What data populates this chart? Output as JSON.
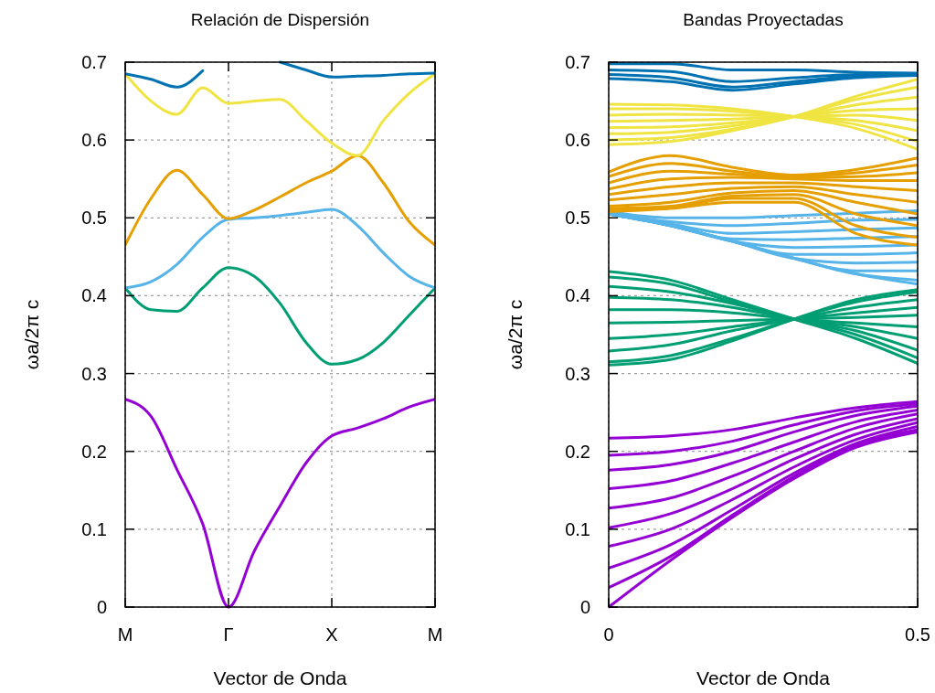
{
  "chart_data": [
    {
      "type": "line",
      "title": "Relación de Dispersión",
      "xlabel": "Vector de Onda",
      "ylabel": "ωa/2π c",
      "categories": [
        "M",
        null,
        null,
        null,
        "Γ",
        null,
        null,
        null,
        "X",
        null,
        null,
        null,
        "M"
      ],
      "ylim": [
        0,
        0.7
      ],
      "yticks": [
        0,
        0.1,
        0.2,
        0.3,
        0.4,
        0.5,
        0.6,
        0.7
      ],
      "grid": true,
      "marker": "none",
      "line_style": "solid",
      "series": [
        {
          "color": "#9400d3",
          "values": [
            0.267,
            0.245,
            0.177,
            0.107,
            0,
            0.072,
            0.13,
            0.185,
            0.22,
            0.23,
            0.242,
            0.257,
            0.267
          ]
        },
        {
          "color": "#009e73",
          "values": [
            0.41,
            0.382,
            0.38,
            0.41,
            0.436,
            0.425,
            0.39,
            0.34,
            0.312,
            0.318,
            0.34,
            0.375,
            0.41
          ]
        },
        {
          "color": "#56b4e9",
          "values": [
            0.41,
            0.418,
            0.44,
            0.475,
            0.498,
            0.5,
            0.503,
            0.507,
            0.511,
            0.49,
            0.455,
            0.425,
            0.41
          ]
        },
        {
          "color": "#e69f00",
          "values": [
            0.465,
            0.525,
            0.561,
            0.53,
            0.499,
            0.51,
            0.527,
            0.545,
            0.56,
            0.58,
            0.545,
            0.495,
            0.465
          ]
        },
        {
          "color": "#f0e442",
          "values": [
            0.685,
            0.65,
            0.633,
            0.667,
            0.647,
            0.65,
            0.652,
            0.625,
            0.596,
            0.58,
            0.625,
            0.66,
            0.685
          ]
        },
        {
          "color": "#0072b2",
          "values": [
            0.685,
            0.678,
            0.668,
            0.689,
            null,
            null,
            0.7,
            0.69,
            0.681,
            0.682,
            0.683,
            0.685,
            0.686
          ]
        }
      ]
    },
    {
      "type": "line",
      "title": "Bandas Proyectadas",
      "xlabel": "Vector de Onda",
      "ylabel": "ωa/2π c",
      "x": [
        0,
        0.1,
        0.2,
        0.3,
        0.4,
        0.5
      ],
      "xlim": [
        0,
        0.5
      ],
      "ylim": [
        0,
        0.7
      ],
      "xticks": [
        0,
        0.5
      ],
      "yticks": [
        0,
        0.1,
        0.2,
        0.3,
        0.4,
        0.5,
        0.6,
        0.7
      ],
      "grid": true,
      "marker": "none",
      "line_style": "solid",
      "series": [
        {
          "color": "#9400d3",
          "values": [
            0,
            0.06,
            0.115,
            0.165,
            0.205,
            0.225
          ]
        },
        {
          "color": "#9400d3",
          "values": [
            0.025,
            0.065,
            0.118,
            0.168,
            0.208,
            0.228
          ]
        },
        {
          "color": "#9400d3",
          "values": [
            0.05,
            0.08,
            0.125,
            0.172,
            0.21,
            0.232
          ]
        },
        {
          "color": "#9400d3",
          "values": [
            0.078,
            0.1,
            0.138,
            0.18,
            0.215,
            0.237
          ]
        },
        {
          "color": "#9400d3",
          "values": [
            0.102,
            0.12,
            0.152,
            0.19,
            0.222,
            0.242
          ]
        },
        {
          "color": "#9400d3",
          "values": [
            0.127,
            0.14,
            0.168,
            0.2,
            0.23,
            0.248
          ]
        },
        {
          "color": "#9400d3",
          "values": [
            0.152,
            0.162,
            0.185,
            0.212,
            0.238,
            0.253
          ]
        },
        {
          "color": "#9400d3",
          "values": [
            0.176,
            0.183,
            0.2,
            0.225,
            0.246,
            0.258
          ]
        },
        {
          "color": "#9400d3",
          "values": [
            0.195,
            0.2,
            0.213,
            0.234,
            0.252,
            0.261
          ]
        },
        {
          "color": "#9400d3",
          "values": [
            0.217,
            0.22,
            0.228,
            0.243,
            0.256,
            0.264
          ]
        },
        {
          "color": "#009e73",
          "values": [
            0.431,
            0.42,
            0.395,
            0.37,
            0.345,
            0.313
          ]
        },
        {
          "color": "#009e73",
          "values": [
            0.424,
            0.415,
            0.392,
            0.37,
            0.35,
            0.32
          ]
        },
        {
          "color": "#009e73",
          "values": [
            0.412,
            0.405,
            0.39,
            0.37,
            0.355,
            0.33
          ]
        },
        {
          "color": "#009e73",
          "values": [
            0.398,
            0.395,
            0.385,
            0.37,
            0.36,
            0.345
          ]
        },
        {
          "color": "#009e73",
          "values": [
            0.382,
            0.382,
            0.378,
            0.37,
            0.365,
            0.36
          ]
        },
        {
          "color": "#009e73",
          "values": [
            0.365,
            0.366,
            0.368,
            0.37,
            0.372,
            0.375
          ]
        },
        {
          "color": "#009e73",
          "values": [
            0.345,
            0.35,
            0.36,
            0.37,
            0.378,
            0.385
          ]
        },
        {
          "color": "#009e73",
          "values": [
            0.329,
            0.337,
            0.355,
            0.37,
            0.385,
            0.395
          ]
        },
        {
          "color": "#009e73",
          "values": [
            0.315,
            0.323,
            0.345,
            0.37,
            0.392,
            0.405
          ]
        },
        {
          "color": "#009e73",
          "values": [
            0.311,
            0.318,
            0.342,
            0.37,
            0.395,
            0.408
          ]
        },
        {
          "color": "#56b4e9",
          "values": [
            0.508,
            0.5,
            0.5,
            0.503,
            0.506,
            0.509
          ]
        },
        {
          "color": "#56b4e9",
          "values": [
            0.505,
            0.495,
            0.49,
            0.493,
            0.497,
            0.498
          ]
        },
        {
          "color": "#56b4e9",
          "values": [
            0.505,
            0.492,
            0.48,
            0.482,
            0.485,
            0.487
          ]
        },
        {
          "color": "#56b4e9",
          "values": [
            0.505,
            0.49,
            0.473,
            0.472,
            0.474,
            0.476
          ]
        },
        {
          "color": "#56b4e9",
          "values": [
            0.505,
            0.49,
            0.47,
            0.462,
            0.463,
            0.465
          ]
        },
        {
          "color": "#56b4e9",
          "values": [
            0.505,
            0.49,
            0.47,
            0.453,
            0.453,
            0.455
          ]
        },
        {
          "color": "#56b4e9",
          "values": [
            0.505,
            0.49,
            0.47,
            0.448,
            0.442,
            0.443
          ]
        },
        {
          "color": "#56b4e9",
          "values": [
            0.505,
            0.49,
            0.47,
            0.448,
            0.432,
            0.432
          ]
        },
        {
          "color": "#56b4e9",
          "values": [
            0.505,
            0.49,
            0.47,
            0.448,
            0.428,
            0.42
          ]
        },
        {
          "color": "#56b4e9",
          "values": [
            0.505,
            0.49,
            0.47,
            0.448,
            0.428,
            0.415
          ]
        },
        {
          "color": "#e69f00",
          "values": [
            0.559,
            0.58,
            0.565,
            0.555,
            0.562,
            0.577
          ]
        },
        {
          "color": "#e69f00",
          "values": [
            0.553,
            0.57,
            0.56,
            0.553,
            0.558,
            0.568
          ]
        },
        {
          "color": "#e69f00",
          "values": [
            0.545,
            0.56,
            0.556,
            0.552,
            0.553,
            0.558
          ]
        },
        {
          "color": "#e69f00",
          "values": [
            0.537,
            0.55,
            0.552,
            0.55,
            0.548,
            0.548
          ]
        },
        {
          "color": "#e69f00",
          "values": [
            0.53,
            0.54,
            0.545,
            0.545,
            0.54,
            0.535
          ]
        },
        {
          "color": "#e69f00",
          "values": [
            0.523,
            0.53,
            0.538,
            0.54,
            0.53,
            0.52
          ]
        },
        {
          "color": "#e69f00",
          "values": [
            0.515,
            0.52,
            0.532,
            0.535,
            0.52,
            0.505
          ]
        },
        {
          "color": "#e69f00",
          "values": [
            0.512,
            0.515,
            0.528,
            0.53,
            0.505,
            0.49
          ]
        },
        {
          "color": "#e69f00",
          "values": [
            0.51,
            0.513,
            0.525,
            0.525,
            0.49,
            0.475
          ]
        },
        {
          "color": "#e69f00",
          "values": [
            0.508,
            0.512,
            0.52,
            0.52,
            0.48,
            0.465
          ]
        },
        {
          "color": "#f0e442",
          "values": [
            0.646,
            0.645,
            0.64,
            0.63,
            0.615,
            0.588
          ]
        },
        {
          "color": "#f0e442",
          "values": [
            0.64,
            0.64,
            0.637,
            0.63,
            0.62,
            0.598
          ]
        },
        {
          "color": "#f0e442",
          "values": [
            0.632,
            0.633,
            0.632,
            0.63,
            0.625,
            0.612
          ]
        },
        {
          "color": "#f0e442",
          "values": [
            0.624,
            0.625,
            0.627,
            0.63,
            0.632,
            0.625
          ]
        },
        {
          "color": "#f0e442",
          "values": [
            0.616,
            0.617,
            0.622,
            0.63,
            0.638,
            0.64
          ]
        },
        {
          "color": "#f0e442",
          "values": [
            0.608,
            0.61,
            0.618,
            0.63,
            0.645,
            0.655
          ]
        },
        {
          "color": "#f0e442",
          "values": [
            0.6,
            0.603,
            0.614,
            0.63,
            0.652,
            0.668
          ]
        },
        {
          "color": "#f0e442",
          "values": [
            0.594,
            0.598,
            0.612,
            0.63,
            0.656,
            0.678
          ]
        },
        {
          "color": "#0072b2",
          "values": [
            0.698,
            0.698,
            0.69,
            0.69,
            0.687,
            0.686
          ]
        },
        {
          "color": "#0072b2",
          "values": [
            0.69,
            0.688,
            0.675,
            0.68,
            0.684,
            0.685
          ]
        },
        {
          "color": "#0072b2",
          "values": [
            0.684,
            0.68,
            0.668,
            0.675,
            0.682,
            0.684
          ]
        },
        {
          "color": "#0072b2",
          "values": [
            0.679,
            0.675,
            0.664,
            0.672,
            0.68,
            0.683
          ]
        }
      ]
    }
  ]
}
